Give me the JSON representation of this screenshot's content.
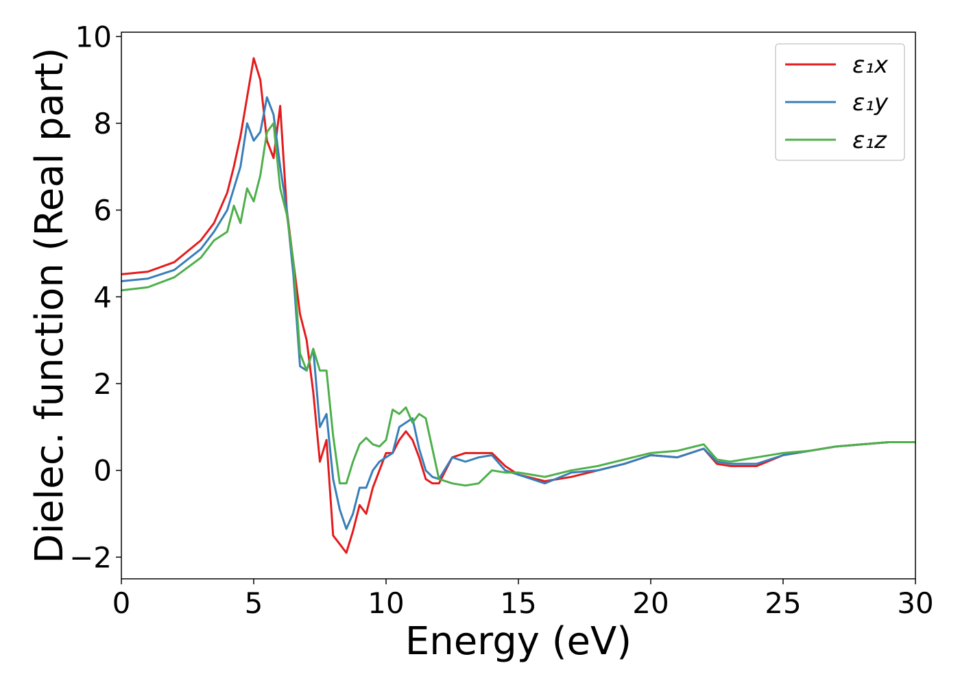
{
  "chart_data": {
    "type": "line",
    "xlabel": "Energy (eV)",
    "ylabel": "Dielec. function (Real part)",
    "x": [
      0,
      1,
      2,
      3,
      3.5,
      4,
      4.25,
      4.5,
      4.75,
      5,
      5.25,
      5.5,
      5.75,
      6,
      6.25,
      6.5,
      6.75,
      7,
      7.25,
      7.5,
      7.75,
      8,
      8.25,
      8.5,
      8.75,
      9,
      9.25,
      9.5,
      9.75,
      10,
      10.25,
      10.5,
      10.75,
      11,
      11.25,
      11.5,
      11.75,
      12,
      12.5,
      13,
      13.5,
      14,
      14.5,
      15,
      16,
      17,
      18,
      19,
      20,
      21,
      22,
      22.5,
      23,
      24,
      25,
      26,
      27,
      28,
      29,
      30
    ],
    "series": [
      {
        "name": "ε₁x",
        "color": "#e41a1c",
        "values": [
          4.52,
          4.58,
          4.8,
          5.3,
          5.7,
          6.4,
          7.0,
          7.7,
          8.6,
          9.5,
          9.0,
          7.6,
          7.2,
          8.4,
          6.0,
          4.8,
          3.6,
          3.0,
          1.8,
          0.2,
          0.7,
          -1.5,
          -1.7,
          -1.9,
          -1.4,
          -0.8,
          -1.0,
          -0.4,
          0.0,
          0.4,
          0.4,
          0.7,
          0.9,
          0.7,
          0.3,
          -0.2,
          -0.3,
          -0.3,
          0.3,
          0.4,
          0.4,
          0.4,
          0.1,
          -0.1,
          -0.25,
          -0.15,
          0.0,
          0.15,
          0.35,
          0.3,
          0.5,
          0.15,
          0.1,
          0.1,
          0.35,
          0.45,
          0.55,
          0.6,
          0.65,
          0.65
        ]
      },
      {
        "name": "ε₁y",
        "color": "#377eb8",
        "values": [
          4.36,
          4.42,
          4.62,
          5.1,
          5.5,
          6.0,
          6.5,
          7.0,
          8.0,
          7.6,
          7.8,
          8.6,
          8.2,
          7.0,
          6.0,
          4.5,
          2.4,
          2.3,
          2.8,
          1.0,
          1.3,
          -0.2,
          -0.9,
          -1.35,
          -1.0,
          -0.4,
          -0.4,
          0.0,
          0.2,
          0.3,
          0.4,
          1.0,
          1.1,
          1.2,
          0.5,
          0.0,
          -0.15,
          -0.2,
          0.3,
          0.2,
          0.3,
          0.35,
          0.0,
          -0.1,
          -0.3,
          -0.05,
          0.0,
          0.15,
          0.35,
          0.3,
          0.5,
          0.2,
          0.15,
          0.15,
          0.35,
          0.45,
          0.55,
          0.6,
          0.65,
          0.65
        ]
      },
      {
        "name": "ε₁z",
        "color": "#4daf4a",
        "values": [
          4.15,
          4.22,
          4.45,
          4.9,
          5.3,
          5.5,
          6.1,
          5.7,
          6.5,
          6.2,
          6.8,
          7.8,
          8.0,
          6.5,
          5.9,
          4.8,
          2.7,
          2.3,
          2.8,
          2.3,
          2.3,
          0.8,
          -0.3,
          -0.3,
          0.2,
          0.6,
          0.75,
          0.6,
          0.55,
          0.7,
          1.4,
          1.3,
          1.45,
          1.1,
          1.3,
          1.2,
          0.5,
          -0.2,
          -0.3,
          -0.35,
          -0.3,
          0.0,
          -0.05,
          -0.05,
          -0.15,
          0.0,
          0.1,
          0.25,
          0.4,
          0.45,
          0.6,
          0.25,
          0.2,
          0.3,
          0.4,
          0.45,
          0.55,
          0.6,
          0.65,
          0.65
        ]
      }
    ],
    "xlim": [
      0,
      30
    ],
    "xticks": [
      0,
      5,
      10,
      15,
      20,
      25,
      30
    ],
    "ylim": [
      -2.5,
      10.1
    ],
    "yticks": [
      {
        "value": -2,
        "label": "−2"
      },
      0,
      2,
      4,
      6,
      8,
      10
    ],
    "legend": "upper right",
    "grid": false
  }
}
